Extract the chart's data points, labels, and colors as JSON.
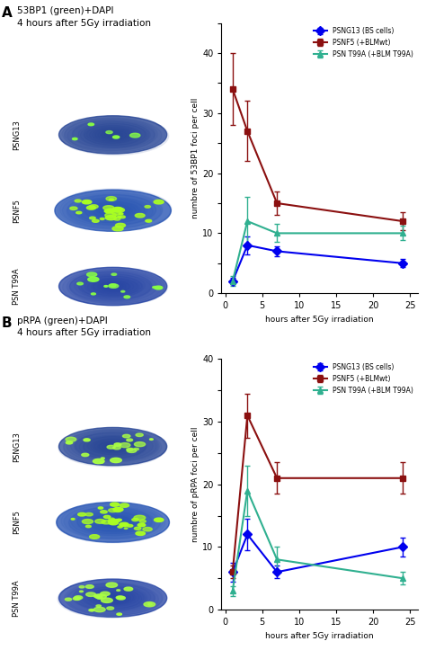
{
  "panel_A": {
    "left_title": "53BP1 (green)+DAPI\n4 hours after 5Gy irradiation",
    "ylabel": "numbre of 53BP1 foci per cell",
    "xlabel": "hours after 5Gy irradiation",
    "ylim": [
      0,
      45
    ],
    "yticks": [
      0,
      5,
      10,
      15,
      20,
      25,
      30,
      35,
      40,
      45
    ],
    "ytick_labels": [
      "0",
      "",
      "10",
      "",
      "20",
      "",
      "30",
      "",
      "40",
      ""
    ],
    "x": [
      1,
      3,
      7,
      24
    ],
    "series_order": [
      "PSNG13 (BS cells)",
      "PSNF5 (+BLMwt)",
      "PSN T99A (+BLM T99A)"
    ],
    "series": {
      "PSNG13 (BS cells)": {
        "color": "#0000ee",
        "marker": "D",
        "markersize": 5,
        "y": [
          2,
          8,
          7,
          5
        ],
        "yerr": [
          0.5,
          1.5,
          0.8,
          0.7
        ]
      },
      "PSNF5 (+BLMwt)": {
        "color": "#8b1010",
        "marker": "s",
        "markersize": 5,
        "y": [
          34,
          27,
          15,
          12
        ],
        "yerr": [
          6,
          5,
          2,
          1.5
        ]
      },
      "PSN T99A (+BLM T99A)": {
        "color": "#30b090",
        "marker": "^",
        "markersize": 5,
        "y": [
          2,
          12,
          10,
          10
        ],
        "yerr": [
          0.8,
          4,
          1.5,
          1.2
        ]
      }
    },
    "cell_labels": [
      "PSNG13",
      "PSNF5",
      "PSN T99A"
    ],
    "cell_seeds": [
      10,
      20,
      30
    ],
    "cell_ndots": [
      5,
      30,
      12
    ],
    "cell_bg": [
      "#000510",
      "#000510",
      "#000510"
    ],
    "cell_nucleus_color": [
      "#1a3a8f",
      "#1a4aaf",
      "#1a3a9f"
    ],
    "cell_dot_color": [
      "#88ff44",
      "#aaff22",
      "#88ff44"
    ]
  },
  "panel_B": {
    "left_title": "pRPA (green)+DAPI\n4 hours after 5Gy irradiation",
    "ylabel": "numbre of pRPA foci per cell",
    "xlabel": "hours after 5Gy irradiation",
    "ylim": [
      0,
      40
    ],
    "yticks": [
      0,
      5,
      10,
      15,
      20,
      25,
      30,
      35,
      40
    ],
    "ytick_labels": [
      "0",
      "",
      "10",
      "",
      "20",
      "",
      "30",
      "",
      "40"
    ],
    "x": [
      1,
      3,
      7,
      24
    ],
    "series_order": [
      "PSNG13 (BS cells)",
      "PSNF5 (+BLMwt)",
      "PSN T99A (+BLM T99A)"
    ],
    "series": {
      "PSNG13 (BS cells)": {
        "color": "#0000ee",
        "marker": "D",
        "markersize": 5,
        "y": [
          6,
          12,
          6,
          10
        ],
        "yerr": [
          1.5,
          2.5,
          1.0,
          1.5
        ]
      },
      "PSNF5 (+BLMwt)": {
        "color": "#8b1010",
        "marker": "s",
        "markersize": 5,
        "y": [
          6,
          31,
          21,
          21
        ],
        "yerr": [
          1.0,
          3.5,
          2.5,
          2.5
        ]
      },
      "PSN T99A (+BLM T99A)": {
        "color": "#30b090",
        "marker": "^",
        "markersize": 5,
        "y": [
          3,
          19,
          8,
          5
        ],
        "yerr": [
          0.8,
          4,
          2,
          1
        ]
      }
    },
    "cell_labels": [
      "PSNG13",
      "PSNF5",
      "PSN T99A"
    ],
    "cell_seeds": [
      40,
      50,
      60
    ],
    "cell_ndots": [
      20,
      35,
      25
    ],
    "cell_bg": [
      "#000510",
      "#000510",
      "#000510"
    ],
    "cell_nucleus_color": [
      "#1a3a8f",
      "#1a4aaf",
      "#1a3a9f"
    ],
    "cell_dot_color": [
      "#aaff44",
      "#aaff22",
      "#aaff44"
    ]
  },
  "figure_width": 4.74,
  "figure_height": 7.33,
  "dpi": 100
}
